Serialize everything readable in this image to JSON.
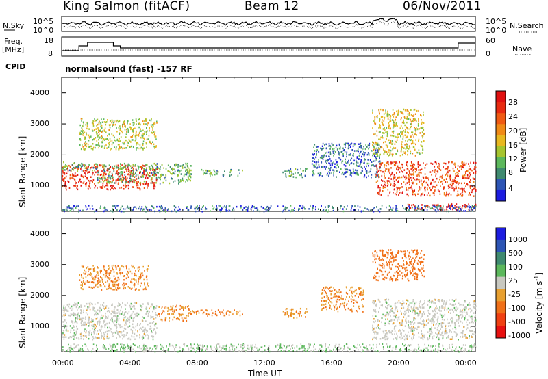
{
  "header": {
    "station": "King Salmon (fitACF)",
    "beam": "Beam 12",
    "date": "06/Nov/2011"
  },
  "left_labels": {
    "nsky": "N.Sky",
    "freq": "Freq.",
    "mhz": "[MHz]",
    "cpid": "CPID"
  },
  "right_labels": {
    "nsearch": "N.Search",
    "nave": "Nave"
  },
  "mode_text": "normalsound (fast) -157 RF",
  "strip_ticks": {
    "noise_left_top": "10^5",
    "noise_left_bottom": "10^0",
    "noise_right_top": "10^5",
    "noise_right_bottom": "10^0",
    "freq_top": "18",
    "freq_bottom": "8",
    "nave_top": "60",
    "nave_bottom": "0"
  },
  "axes": {
    "ylabel": "Slant Range [km]",
    "xlabel": "Time UT",
    "yticks": [
      "1000",
      "2000",
      "3000",
      "4000"
    ],
    "xticks": [
      "00:00",
      "04:00",
      "08:00",
      "12:00",
      "16:00",
      "20:00",
      "00:00"
    ]
  },
  "colorbars": {
    "power": {
      "label": "Power [dB]",
      "ticks": [
        "4",
        "8",
        "12",
        "16",
        "20",
        "24",
        "28"
      ],
      "colors": [
        "#1c1ce0",
        "#2d55b5",
        "#3f8a70",
        "#5cb85c",
        "#a6c52f",
        "#e8b820",
        "#f08a16",
        "#f05a12",
        "#e82a10",
        "#e01010"
      ]
    },
    "velocity": {
      "label": "Velocity [m s",
      "label_sup": "-1",
      "label_end": "]",
      "ticks": [
        "1000",
        "500",
        "100",
        "25",
        "-25",
        "-100",
        "-500",
        "-1000"
      ],
      "colors": [
        "#1c1ce0",
        "#2d55b5",
        "#3f8a70",
        "#5cb85c",
        "#c8c8c0",
        "#e8a030",
        "#f07018",
        "#f04012",
        "#e81010"
      ]
    }
  },
  "chart_data": {
    "type": "heatmap",
    "x_range_hours": [
      0,
      24
    ],
    "y_range_km": [
      180,
      4500
    ],
    "series": [
      {
        "name": "Power [dB]",
        "regions": [
          {
            "t": [
              0.0,
              5.5
            ],
            "r": [
              900,
              1700
            ],
            "value": 26
          },
          {
            "t": [
              0.0,
              2.0
            ],
            "r": [
              1500,
              1800
            ],
            "value": 10
          },
          {
            "t": [
              2.0,
              7.5
            ],
            "r": [
              1100,
              1750
            ],
            "value": 10
          },
          {
            "t": [
              1.0,
              5.5
            ],
            "r": [
              2200,
              3200
            ],
            "value": 14
          },
          {
            "t": [
              8.0,
              10.5
            ],
            "r": [
              1350,
              1550
            ],
            "value": 10
          },
          {
            "t": [
              12.8,
              14.2
            ],
            "r": [
              1300,
              1600
            ],
            "value": 9
          },
          {
            "t": [
              14.5,
              18.5
            ],
            "r": [
              1300,
              2400
            ],
            "value": 6
          },
          {
            "t": [
              18.2,
              24.0
            ],
            "r": [
              700,
              1800
            ],
            "value": 24
          },
          {
            "t": [
              18.0,
              21.0
            ],
            "r": [
              2000,
              3500
            ],
            "value": 16
          },
          {
            "t": [
              20.0,
              24.0
            ],
            "r": [
              250,
              450
            ],
            "value": 27
          },
          {
            "t": [
              0.0,
              24.0
            ],
            "r": [
              200,
              400
            ],
            "value": 5
          }
        ]
      },
      {
        "name": "Velocity [m s-1]",
        "regions": [
          {
            "t": [
              0.0,
              5.5
            ],
            "r": [
              600,
              1800
            ],
            "value": 0
          },
          {
            "t": [
              5.5,
              7.5
            ],
            "r": [
              1200,
              1700
            ],
            "value": -100
          },
          {
            "t": [
              7.5,
              10.5
            ],
            "r": [
              1350,
              1550
            ],
            "value": -100
          },
          {
            "t": [
              1.0,
              5.0
            ],
            "r": [
              2200,
              3000
            ],
            "value": -100
          },
          {
            "t": [
              12.8,
              14.2
            ],
            "r": [
              1300,
              1600
            ],
            "value": -100
          },
          {
            "t": [
              15.0,
              17.5
            ],
            "r": [
              1500,
              2300
            ],
            "value": -100
          },
          {
            "t": [
              18.0,
              21.0
            ],
            "r": [
              2500,
              3500
            ],
            "value": -300
          },
          {
            "t": [
              18.0,
              24.0
            ],
            "r": [
              600,
              1900
            ],
            "value": 0
          },
          {
            "t": [
              0.0,
              24.0
            ],
            "r": [
              200,
              450
            ],
            "value": 25
          }
        ]
      }
    ]
  }
}
